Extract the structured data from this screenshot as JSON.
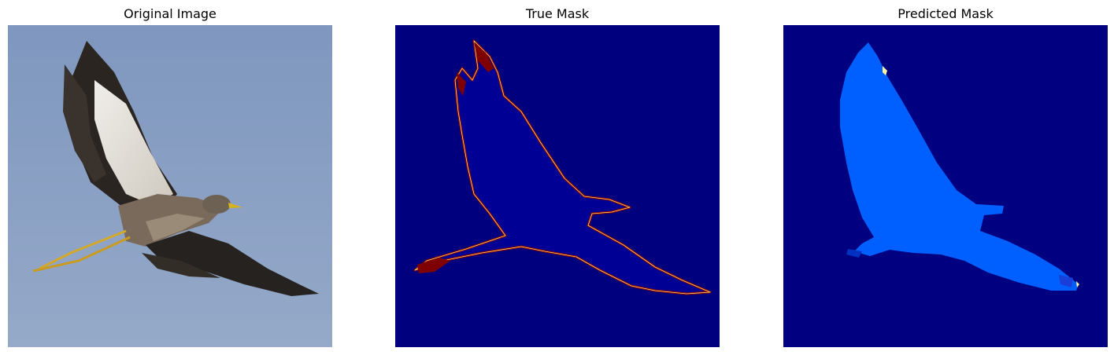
{
  "panels": [
    {
      "title": "Original Image"
    },
    {
      "title": "True Mask"
    },
    {
      "title": "Predicted Mask"
    }
  ],
  "colors": {
    "sky": "#8ba3c7",
    "mask_background": "#00007f",
    "mask_body": "#00009a",
    "mask_outline": "#8b0000",
    "predicted_fill": "#0060ff"
  }
}
